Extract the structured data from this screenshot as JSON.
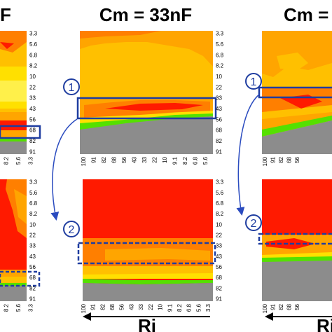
{
  "titles": {
    "left_fragment": "F",
    "center": "Cm = 33nF",
    "right_fragment": "Cm ="
  },
  "badges": {
    "one": "1",
    "two": "2"
  },
  "x_axis_label": "Ri",
  "colors": {
    "red": "#ff1a00",
    "dark_red": "#e80000",
    "orange": "#ff7f00",
    "light_orange": "#ffa500",
    "yellow_orange": "#ffc000",
    "yellow": "#ffe000",
    "light_yellow": "#fff04a",
    "green": "#55e000",
    "gray": "#8c8c8c",
    "highlight_blue": "#1f3da0",
    "arrow_blue": "#2a4bbf"
  },
  "chart_data": [
    {
      "type": "heatmap",
      "panel": "top-left (partially visible)",
      "y_tick_labels": [
        "3.3",
        "5.6",
        "6.8",
        "8.2",
        "10",
        "22",
        "33",
        "43",
        "56",
        "68",
        "82",
        "91"
      ],
      "x_tick_labels": [
        "8.2",
        "5.6",
        "3.3"
      ]
    },
    {
      "type": "heatmap",
      "panel": "top-center",
      "title": "Cm = 33nF",
      "y_tick_labels": [
        "3.3",
        "5.6",
        "6.8",
        "8.2",
        "10",
        "22",
        "33",
        "43",
        "56",
        "68",
        "82",
        "91"
      ],
      "x_tick_labels": [
        "100",
        "91",
        "82",
        "68",
        "56",
        "43",
        "33",
        "22",
        "10",
        "9.1",
        "8.2",
        "6.8",
        "5.6"
      ],
      "highlight": {
        "label": "1",
        "rows": [
          "33",
          "43"
        ],
        "style": "solid"
      }
    },
    {
      "type": "heatmap",
      "panel": "bottom-center",
      "y_tick_labels": [
        "3.3",
        "5.6",
        "6.8",
        "8.2",
        "10",
        "22",
        "33",
        "43",
        "56",
        "68",
        "82",
        "91"
      ],
      "x_tick_labels": [
        "100",
        "91",
        "82",
        "68",
        "56",
        "43",
        "33",
        "22",
        "10",
        "9.1",
        "8.2",
        "6.8",
        "5.6",
        "3.3"
      ],
      "x_label": "Ri",
      "highlight": {
        "label": "2",
        "rows": [
          "33",
          "43"
        ],
        "style": "dashed"
      }
    },
    {
      "type": "heatmap",
      "panel": "bottom-left (partially visible)",
      "y_tick_labels": [
        "3.3",
        "5.6",
        "6.8",
        "8.2",
        "10",
        "22",
        "33",
        "43",
        "56",
        "68",
        "82",
        "91"
      ],
      "x_tick_labels": [
        "8.2",
        "5.6",
        "3.3"
      ]
    },
    {
      "type": "heatmap",
      "panel": "top-right (partially visible)",
      "title": "Cm =",
      "x_tick_labels": [
        "100",
        "91",
        "82",
        "68",
        "56"
      ]
    },
    {
      "type": "heatmap",
      "panel": "bottom-right (partially visible)",
      "x_tick_labels": [
        "100",
        "91",
        "82",
        "68",
        "56"
      ],
      "x_label": "Ri"
    }
  ]
}
